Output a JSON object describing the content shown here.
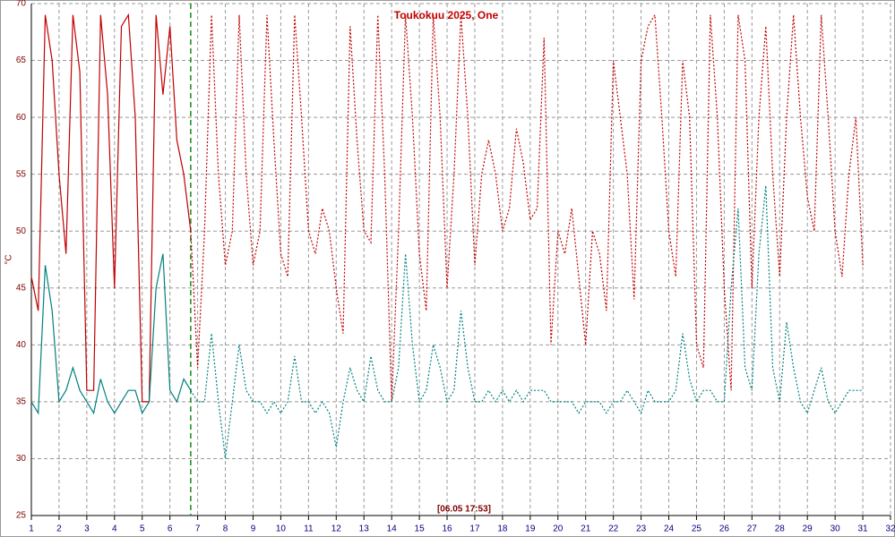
{
  "chart_data": {
    "type": "line",
    "title": "Toukokuu 2025, One",
    "ylabel": "°C",
    "xlim": [
      1,
      32
    ],
    "ylim": [
      25,
      70
    ],
    "xticks": [
      1,
      2,
      3,
      4,
      5,
      6,
      7,
      8,
      9,
      10,
      11,
      12,
      13,
      14,
      15,
      16,
      17,
      18,
      19,
      20,
      21,
      22,
      23,
      24,
      25,
      26,
      27,
      28,
      29,
      30,
      31,
      32
    ],
    "yticks": [
      25,
      30,
      35,
      40,
      45,
      50,
      55,
      60,
      65,
      70
    ],
    "grid": true,
    "marker": {
      "x": 6.75,
      "label": "[06.05 17:53]",
      "color": "#1a8a1a"
    },
    "x": [
      1,
      1.25,
      1.5,
      1.75,
      2,
      2.25,
      2.5,
      2.75,
      3,
      3.25,
      3.5,
      3.75,
      4,
      4.25,
      4.5,
      4.75,
      5,
      5.25,
      5.5,
      5.75,
      6,
      6.25,
      6.5,
      6.75,
      7,
      7.25,
      7.5,
      7.75,
      8,
      8.25,
      8.5,
      8.75,
      9,
      9.25,
      9.5,
      9.75,
      10,
      10.25,
      10.5,
      10.75,
      11,
      11.25,
      11.5,
      11.75,
      12,
      12.25,
      12.5,
      12.75,
      13,
      13.25,
      13.5,
      13.75,
      14,
      14.25,
      14.5,
      14.75,
      15,
      15.25,
      15.5,
      15.75,
      16,
      16.25,
      16.5,
      16.75,
      17,
      17.25,
      17.5,
      17.75,
      18,
      18.25,
      18.5,
      18.75,
      19,
      19.25,
      19.5,
      19.75,
      20,
      20.25,
      20.5,
      20.75,
      21,
      21.25,
      21.5,
      21.75,
      22,
      22.25,
      22.5,
      22.75,
      23,
      23.25,
      23.5,
      23.75,
      24,
      24.25,
      24.5,
      24.75,
      25,
      25.25,
      25.5,
      25.75,
      26,
      26.25,
      26.5,
      26.75,
      27,
      27.25,
      27.5,
      27.75,
      28,
      28.25,
      28.5,
      28.75,
      29,
      29.25,
      29.5,
      29.75,
      30,
      30.25,
      30.5,
      30.75,
      31
    ],
    "series": [
      {
        "color": "#c00000",
        "values": [
          46,
          43,
          69,
          65,
          55,
          48,
          69,
          64,
          36,
          36,
          69,
          62,
          45,
          68,
          69,
          60,
          35,
          35,
          69,
          62,
          68,
          58,
          55,
          50,
          38,
          50,
          69,
          55,
          47,
          50,
          69,
          55,
          47,
          50,
          69,
          58,
          48,
          46,
          69,
          60,
          50,
          48,
          52,
          50,
          45,
          41,
          68,
          58,
          50,
          49,
          69,
          55,
          35,
          50,
          69,
          60,
          48,
          43,
          69,
          60,
          45,
          55,
          69,
          60,
          47,
          55,
          58,
          55,
          50,
          52,
          59,
          56,
          51,
          52,
          67,
          40,
          50,
          48,
          52,
          46,
          40,
          50,
          48,
          43,
          65,
          60,
          55,
          44,
          65,
          68,
          69,
          60,
          50,
          46,
          65,
          60,
          40,
          38,
          69,
          60,
          45,
          36,
          69,
          65,
          45,
          60,
          68,
          55,
          46,
          60,
          69,
          60,
          53,
          50,
          69,
          60,
          50,
          46,
          55,
          60,
          47
        ]
      },
      {
        "color": "#008080",
        "values": [
          35,
          34,
          47,
          43,
          35,
          36,
          38,
          36,
          35,
          34,
          37,
          35,
          34,
          35,
          36,
          36,
          34,
          35,
          45,
          48,
          36,
          35,
          37,
          36,
          35,
          35,
          41,
          35,
          30,
          35,
          40,
          36,
          35,
          35,
          34,
          35,
          34,
          35,
          39,
          35,
          35,
          34,
          35,
          34,
          31,
          35,
          38,
          36,
          35,
          39,
          36,
          35,
          35,
          38,
          48,
          40,
          35,
          36,
          40,
          38,
          35,
          36,
          43,
          38,
          35,
          35,
          36,
          35,
          36,
          35,
          36,
          35,
          36,
          36,
          36,
          35,
          35,
          35,
          35,
          34,
          35,
          35,
          35,
          34,
          35,
          35,
          36,
          35,
          34,
          36,
          35,
          35,
          35,
          36,
          41,
          37,
          35,
          36,
          36,
          35,
          35,
          45,
          52,
          38,
          36,
          48,
          54,
          38,
          35,
          42,
          38,
          35,
          34,
          36,
          38,
          35,
          34,
          35,
          36,
          36,
          36
        ]
      }
    ]
  }
}
